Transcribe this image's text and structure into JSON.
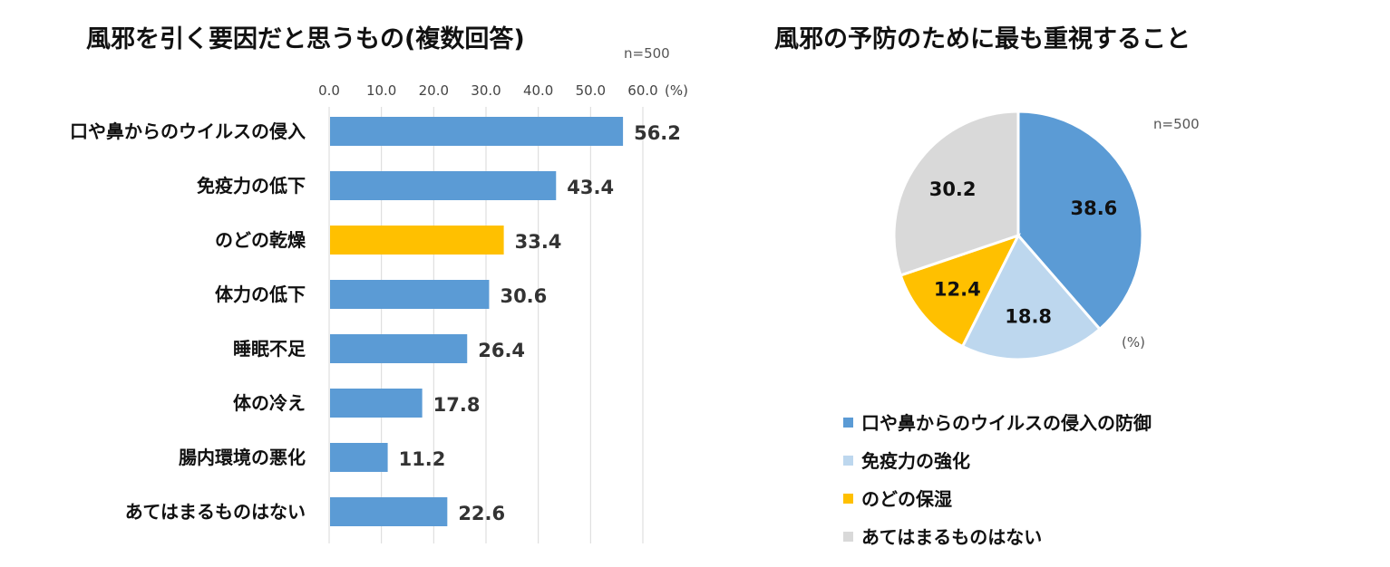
{
  "chart_data": [
    {
      "type": "bar",
      "orientation": "horizontal",
      "title": "風邪を引く要因だと思うもの(複数回答)",
      "sample_note": "n=500",
      "unit_label": "(%)",
      "xlim": [
        0,
        60
      ],
      "ticks": [
        "0.0",
        "10.0",
        "20.0",
        "30.0",
        "40.0",
        "50.0",
        "60.0"
      ],
      "grid": true,
      "categories": [
        "口や鼻からのウイルスの侵入",
        "免疫力の低下",
        "のどの乾燥",
        "体力の低下",
        "睡眠不足",
        "体の冷え",
        "腸内環境の悪化",
        "あてはまるものはない"
      ],
      "values": [
        56.2,
        43.4,
        33.4,
        30.6,
        26.4,
        17.8,
        11.2,
        22.6
      ],
      "value_labels": [
        "56.2",
        "43.4",
        "33.4",
        "30.6",
        "26.4",
        "17.8",
        "11.2",
        "22.6"
      ],
      "bar_colors": [
        "#5b9bd5",
        "#5b9bd5",
        "#ffc000",
        "#5b9bd5",
        "#5b9bd5",
        "#5b9bd5",
        "#5b9bd5",
        "#5b9bd5"
      ]
    },
    {
      "type": "pie",
      "title": "風邪の予防のために最も重視すること",
      "sample_note": "n=500",
      "unit_label": "(%)",
      "labels": [
        "口や鼻からのウイルスの侵入の防御",
        "免疫力の強化",
        "のどの保湿",
        "あてはまるものはない"
      ],
      "values": [
        38.6,
        18.8,
        12.4,
        30.2
      ],
      "value_labels": [
        "38.6",
        "18.8",
        "12.4",
        "30.2"
      ],
      "colors": [
        "#5b9bd5",
        "#bdd7ee",
        "#ffc000",
        "#d9d9d9"
      ],
      "legend_position": "bottom"
    }
  ]
}
